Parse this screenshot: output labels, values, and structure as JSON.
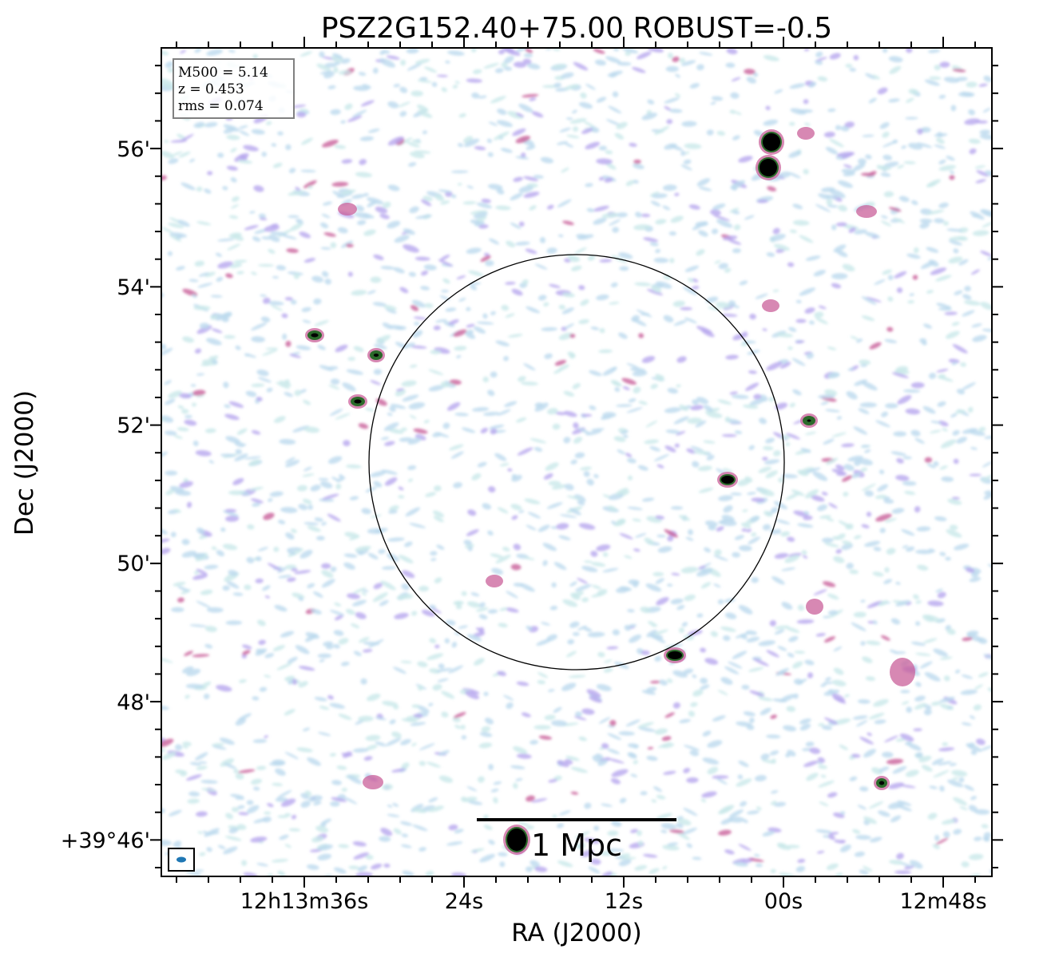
{
  "chart_data": {
    "type": "heatmap",
    "title": "PSZ2G152.40+75.00 ROBUST=-0.5",
    "xlabel": "RA (J2000)",
    "ylabel": "Dec (J2000)",
    "x_ticks": [
      "12h13m36s",
      "24s",
      "12s",
      "00s",
      "12m48s"
    ],
    "y_ticks": [
      "+39°46'",
      "48'",
      "50'",
      "52'",
      "54'",
      "56'"
    ],
    "annotation_box": [
      "M500 = 5.14",
      "z = 0.453",
      "rms = 0.074"
    ],
    "scale_bar_label": "1 Mpc",
    "colormap_colors": [
      "#bcd9ee",
      "#c9e8ea",
      "#b6a6ee",
      "#c9609a",
      "#2a6a2a",
      "#000000"
    ],
    "beam_color": "#1f77b4",
    "overlay": "circle (R500 aperture), black outline"
  }
}
